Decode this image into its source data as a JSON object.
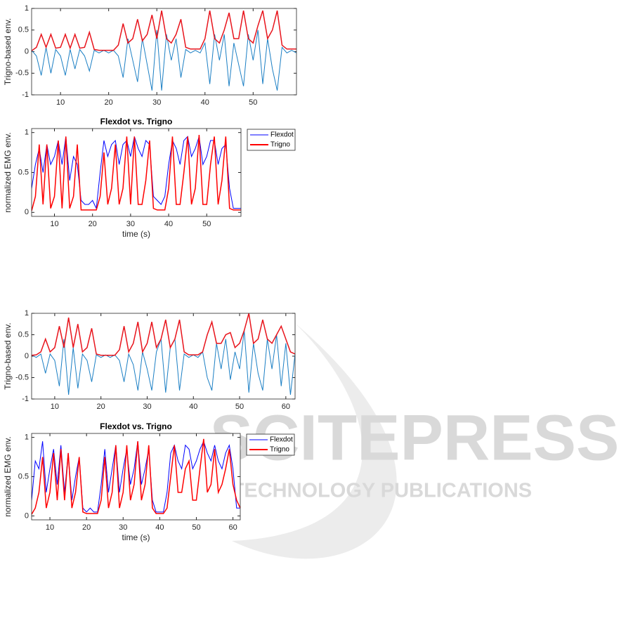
{
  "watermark": {
    "brand": "SCITEPRESS",
    "tagline": "SCIENCE AND TECHNOLOGY PUBLICATIONS"
  },
  "chart_data": [
    {
      "type": "line",
      "ylabel": "Trigno-based env.",
      "xlim": [
        4,
        59
      ],
      "ylim": [
        -1,
        1
      ],
      "xticks": [
        10,
        20,
        30,
        40,
        50
      ],
      "yticks": [
        -1,
        -0.5,
        0,
        0.5,
        1
      ],
      "grid": false,
      "x": [
        4,
        5,
        6,
        7,
        8,
        9,
        10,
        11,
        12,
        13,
        14,
        15,
        16,
        17,
        18,
        19,
        20,
        21,
        22,
        23,
        24,
        25,
        26,
        27,
        28,
        29,
        30,
        31,
        32,
        33,
        34,
        35,
        36,
        37,
        38,
        39,
        40,
        41,
        42,
        43,
        44,
        45,
        46,
        47,
        48,
        49,
        50,
        51,
        52,
        53,
        54,
        55,
        56,
        57,
        58,
        59
      ],
      "series": [
        {
          "color": "#1b7fc4",
          "values": [
            0.03,
            -0.1,
            -0.55,
            0.1,
            -0.5,
            0.05,
            -0.1,
            -0.55,
            0.05,
            -0.4,
            0.05,
            -0.1,
            -0.45,
            0.03,
            -0.03,
            0.03,
            -0.03,
            0.03,
            -0.1,
            -0.6,
            0.3,
            -0.2,
            -0.7,
            0.3,
            -0.3,
            -0.9,
            0.5,
            -0.9,
            0.4,
            -0.2,
            0.3,
            -0.6,
            0.05,
            -0.03,
            0.03,
            -0.03,
            0.2,
            -0.75,
            0.4,
            -0.2,
            0.4,
            -0.8,
            0.2,
            -0.3,
            -0.8,
            0.4,
            -0.2,
            0.5,
            -0.75,
            0.3,
            -0.4,
            -0.9,
            0.1,
            -0.03,
            0.03,
            -0.03
          ]
        },
        {
          "color": "#e8141c",
          "values": [
            0.02,
            0.1,
            0.4,
            0.1,
            0.4,
            0.08,
            0.1,
            0.4,
            0.08,
            0.4,
            0.08,
            0.1,
            0.45,
            0.05,
            0.03,
            0.03,
            0.03,
            0.03,
            0.15,
            0.65,
            0.2,
            0.3,
            0.75,
            0.25,
            0.4,
            0.85,
            0.3,
            0.95,
            0.3,
            0.2,
            0.4,
            0.75,
            0.1,
            0.06,
            0.06,
            0.06,
            0.3,
            0.95,
            0.3,
            0.2,
            0.5,
            0.9,
            0.3,
            0.3,
            0.95,
            0.3,
            0.2,
            0.6,
            0.95,
            0.3,
            0.5,
            0.95,
            0.15,
            0.06,
            0.06,
            0.06
          ]
        }
      ]
    },
    {
      "type": "line",
      "title": "Flexdot vs. Trigno",
      "xlabel": "time (s)",
      "ylabel": "normalized EMG env.",
      "xlim": [
        4,
        59
      ],
      "ylim": [
        -0.05,
        1.05
      ],
      "xticks": [
        10,
        20,
        30,
        40,
        50
      ],
      "yticks": [
        0,
        0.5,
        1
      ],
      "grid": false,
      "legend": "outside",
      "x": [
        4,
        5,
        6,
        7,
        8,
        9,
        10,
        11,
        12,
        13,
        14,
        15,
        16,
        17,
        18,
        19,
        20,
        21,
        22,
        23,
        24,
        25,
        26,
        27,
        28,
        29,
        30,
        31,
        32,
        33,
        34,
        35,
        36,
        37,
        38,
        39,
        40,
        41,
        42,
        43,
        44,
        45,
        46,
        47,
        48,
        49,
        50,
        51,
        52,
        53,
        54,
        55,
        56,
        57,
        58,
        59
      ],
      "series": [
        {
          "name": "Flexdot",
          "color": "#0000ff",
          "values": [
            0.3,
            0.6,
            0.8,
            0.5,
            0.85,
            0.6,
            0.7,
            0.9,
            0.6,
            0.95,
            0.4,
            0.7,
            0.6,
            0.15,
            0.1,
            0.1,
            0.15,
            0.05,
            0.5,
            0.9,
            0.7,
            0.85,
            0.9,
            0.6,
            0.85,
            0.9,
            0.7,
            0.95,
            0.8,
            0.7,
            0.9,
            0.85,
            0.2,
            0.15,
            0.1,
            0.2,
            0.6,
            0.9,
            0.8,
            0.6,
            0.9,
            0.95,
            0.7,
            0.8,
            0.95,
            0.6,
            0.7,
            0.9,
            0.9,
            0.6,
            0.8,
            0.85,
            0.3,
            0.05,
            0.05,
            0.05
          ]
        },
        {
          "name": "Trigno",
          "color": "#ff0000",
          "values": [
            0.02,
            0.2,
            0.85,
            0.1,
            0.85,
            0.05,
            0.2,
            0.9,
            0.05,
            0.95,
            0.05,
            0.2,
            0.85,
            0.03,
            0.03,
            0.03,
            0.03,
            0.03,
            0.2,
            0.75,
            0.1,
            0.3,
            0.85,
            0.1,
            0.3,
            0.95,
            0.1,
            0.95,
            0.1,
            0.1,
            0.4,
            0.9,
            0.05,
            0.03,
            0.03,
            0.03,
            0.3,
            0.95,
            0.1,
            0.1,
            0.5,
            0.95,
            0.1,
            0.3,
            0.97,
            0.1,
            0.1,
            0.6,
            0.95,
            0.1,
            0.4,
            0.95,
            0.05,
            0.03,
            0.03,
            0.03
          ]
        }
      ]
    },
    {
      "type": "line",
      "ylabel": "Trigno-based env.",
      "xlim": [
        5,
        62
      ],
      "ylim": [
        -1,
        1
      ],
      "xticks": [
        10,
        20,
        30,
        40,
        50,
        60
      ],
      "yticks": [
        -1,
        -0.5,
        0,
        0.5,
        1
      ],
      "grid": false,
      "x": [
        5,
        6,
        7,
        8,
        9,
        10,
        11,
        12,
        13,
        14,
        15,
        16,
        17,
        18,
        19,
        20,
        21,
        22,
        23,
        24,
        25,
        26,
        27,
        28,
        29,
        30,
        31,
        32,
        33,
        34,
        35,
        36,
        37,
        38,
        39,
        40,
        41,
        42,
        43,
        44,
        45,
        46,
        47,
        48,
        49,
        50,
        51,
        52,
        53,
        54,
        55,
        56,
        57,
        58,
        59,
        60,
        61,
        62
      ],
      "series": [
        {
          "color": "#1b7fc4",
          "values": [
            0.03,
            -0.03,
            0.05,
            -0.4,
            0.05,
            -0.1,
            -0.7,
            0.4,
            -0.9,
            0.2,
            -0.75,
            0.05,
            -0.1,
            -0.6,
            0.03,
            -0.03,
            0.03,
            -0.03,
            0.03,
            -0.1,
            -0.6,
            0.05,
            -0.2,
            -0.8,
            0.1,
            -0.3,
            -0.8,
            0.1,
            0.4,
            -0.85,
            0.2,
            0.4,
            -0.8,
            0.05,
            -0.03,
            0.03,
            -0.03,
            0.1,
            -0.5,
            -0.8,
            0.3,
            -0.3,
            0.4,
            -0.55,
            0.1,
            -0.3,
            0.6,
            -0.85,
            0.3,
            -0.4,
            -0.8,
            0.4,
            -0.3,
            0.5,
            -0.7,
            0.3,
            -0.9,
            0.05
          ]
        },
        {
          "color": "#e8141c",
          "values": [
            0.02,
            0.03,
            0.1,
            0.4,
            0.1,
            0.2,
            0.7,
            0.2,
            0.9,
            0.2,
            0.75,
            0.1,
            0.2,
            0.65,
            0.05,
            0.02,
            0.02,
            0.02,
            0.02,
            0.15,
            0.7,
            0.1,
            0.3,
            0.8,
            0.1,
            0.3,
            0.8,
            0.2,
            0.4,
            0.85,
            0.2,
            0.4,
            0.85,
            0.1,
            0.03,
            0.03,
            0.03,
            0.1,
            0.5,
            0.8,
            0.3,
            0.3,
            0.5,
            0.55,
            0.2,
            0.3,
            0.6,
            1,
            0.3,
            0.4,
            0.85,
            0.4,
            0.3,
            0.5,
            0.7,
            0.4,
            0.1,
            0.05
          ]
        }
      ]
    },
    {
      "type": "line",
      "title": "Flexdot vs. Trigno",
      "xlabel": "time (s)",
      "ylabel": "normalized EMG env.",
      "xlim": [
        5,
        62
      ],
      "ylim": [
        -0.05,
        1.05
      ],
      "xticks": [
        10,
        20,
        30,
        40,
        50,
        60
      ],
      "yticks": [
        0,
        0.5,
        1
      ],
      "grid": false,
      "legend": "outside",
      "x": [
        5,
        6,
        7,
        8,
        9,
        10,
        11,
        12,
        13,
        14,
        15,
        16,
        17,
        18,
        19,
        20,
        21,
        22,
        23,
        24,
        25,
        26,
        27,
        28,
        29,
        30,
        31,
        32,
        33,
        34,
        35,
        36,
        37,
        38,
        39,
        40,
        41,
        42,
        43,
        44,
        45,
        46,
        47,
        48,
        49,
        50,
        51,
        52,
        53,
        54,
        55,
        56,
        57,
        58,
        59,
        60,
        61,
        62
      ],
      "series": [
        {
          "name": "Flexdot",
          "color": "#0000ff",
          "values": [
            0.2,
            0.7,
            0.6,
            0.95,
            0.3,
            0.6,
            0.85,
            0.4,
            0.9,
            0.3,
            0.8,
            0.2,
            0.5,
            0.75,
            0.1,
            0.05,
            0.1,
            0.05,
            0.05,
            0.4,
            0.85,
            0.3,
            0.6,
            0.9,
            0.3,
            0.6,
            0.85,
            0.4,
            0.6,
            0.95,
            0.4,
            0.6,
            0.85,
            0.2,
            0.05,
            0.05,
            0.05,
            0.3,
            0.8,
            0.9,
            0.7,
            0.6,
            0.9,
            0.85,
            0.6,
            0.7,
            0.85,
            0.95,
            0.8,
            0.7,
            0.9,
            0.7,
            0.6,
            0.8,
            0.9,
            0.6,
            0.1,
            0.1
          ]
        },
        {
          "name": "Trigno",
          "color": "#ff0000",
          "values": [
            0.02,
            0.1,
            0.3,
            0.75,
            0.1,
            0.3,
            0.8,
            0.2,
            0.85,
            0.2,
            0.8,
            0.1,
            0.3,
            0.75,
            0.05,
            0.03,
            0.03,
            0.03,
            0.03,
            0.2,
            0.75,
            0.1,
            0.3,
            0.9,
            0.1,
            0.3,
            0.9,
            0.2,
            0.4,
            0.95,
            0.2,
            0.4,
            0.9,
            0.1,
            0.03,
            0.03,
            0.03,
            0.1,
            0.5,
            0.9,
            0.3,
            0.3,
            0.6,
            0.7,
            0.2,
            0.2,
            0.6,
            0.98,
            0.3,
            0.4,
            0.85,
            0.3,
            0.4,
            0.6,
            0.85,
            0.4,
            0.2,
            0.1
          ]
        }
      ]
    }
  ]
}
